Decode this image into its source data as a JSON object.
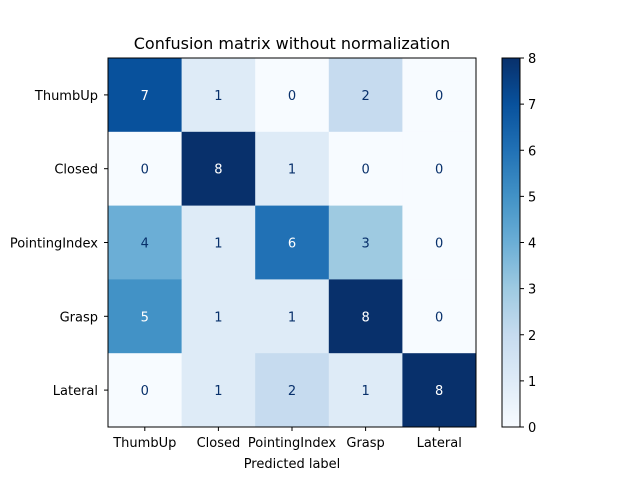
{
  "chart_data": {
    "type": "heatmap",
    "title": "Confusion matrix without normalization",
    "xlabel": "Predicted label",
    "ylabel": "",
    "x_categories": [
      "ThumbUp",
      "Closed",
      "PointingIndex",
      "Grasp",
      "Lateral"
    ],
    "y_categories": [
      "ThumbUp",
      "Closed",
      "PointingIndex",
      "Grasp",
      "Lateral"
    ],
    "values": [
      [
        7,
        1,
        0,
        2,
        0
      ],
      [
        0,
        8,
        1,
        0,
        0
      ],
      [
        4,
        1,
        6,
        3,
        0
      ],
      [
        5,
        1,
        1,
        8,
        0
      ],
      [
        0,
        1,
        2,
        1,
        8
      ]
    ],
    "colormap": "Blues",
    "vmin": 0,
    "vmax": 8,
    "colorbar_ticks": [
      0,
      1,
      2,
      3,
      4,
      5,
      6,
      7,
      8
    ],
    "grid": false
  }
}
